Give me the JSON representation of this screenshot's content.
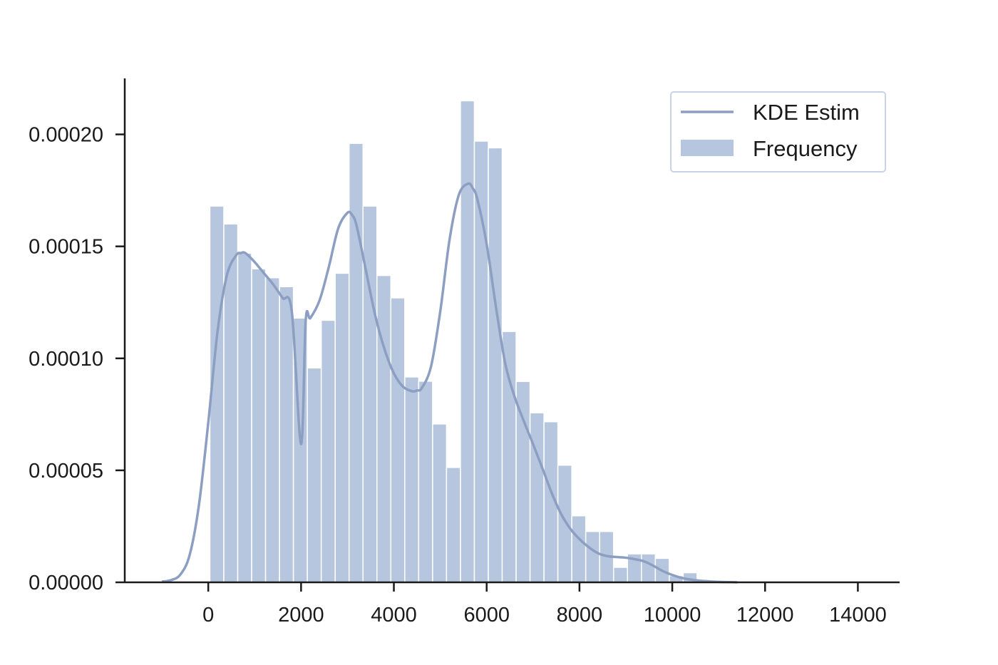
{
  "chart_data": {
    "type": "bar",
    "title": "",
    "xlabel": "",
    "ylabel": "",
    "xlim": [
      -1800,
      14900
    ],
    "ylim": [
      0,
      0.000225
    ],
    "x_ticks": [
      0,
      2000,
      4000,
      6000,
      8000,
      10000,
      12000,
      14000
    ],
    "x_tick_labels": [
      "0",
      "2000",
      "4000",
      "6000",
      "8000",
      "10000",
      "12000",
      "14000"
    ],
    "y_ticks": [
      0,
      5e-05,
      0.0001,
      0.00015,
      0.0002
    ],
    "y_tick_labels": [
      "0.00000",
      "0.00005",
      "0.00010",
      "0.00015",
      "0.00020"
    ],
    "grid": false,
    "legend_position": "top-right",
    "histogram": {
      "name": "Frequency",
      "color": "#b6c6de",
      "edge_color": "#ffffff",
      "bin_width": 300,
      "bin_edges_start": 35,
      "values": [
        0.000168,
        0.00016,
        0.000147,
        0.00014,
        0.000136,
        0.000132,
        0.000118,
        9.57e-05,
        0.000117,
        0.000138,
        0.000196,
        0.000168,
        0.000137,
        0.000127,
        9.17e-05,
        8.98e-05,
        7.07e-05,
        5.13e-05,
        0.000215,
        0.000197,
        0.000194,
        0.000112,
        8.97e-05,
        7.57e-05,
        7.17e-05,
        5.23e-05,
        2.97e-05,
        2.27e-05,
        2.27e-05,
        6.7e-06,
        1.27e-05,
        1.27e-05,
        1.07e-05,
        3e-06,
        4.3e-06
      ]
    },
    "kde": {
      "name": "KDE Estim",
      "color": "#8c9fc2",
      "x": [
        -1000,
        -800,
        -600,
        -400,
        -200,
        0,
        200,
        400,
        600,
        700,
        800,
        1000,
        1200,
        1400,
        1600,
        1800,
        2000,
        2100,
        2200,
        2400,
        2600,
        2800,
        3000,
        3100,
        3200,
        3400,
        3600,
        3800,
        4000,
        4200,
        4400,
        4500,
        4600,
        4800,
        5000,
        5200,
        5400,
        5600,
        5700,
        5800,
        6000,
        6200,
        6400,
        6600,
        6800,
        7000,
        7200,
        7400,
        7600,
        7800,
        8000,
        8200,
        8400,
        8600,
        8800,
        9000,
        9200,
        9400,
        9600,
        9800,
        10000,
        10200,
        10400,
        10600,
        10800,
        11000,
        11200,
        11400
      ],
      "y": [
        3e-07,
        1e-06,
        3.5e-06,
        1.23e-05,
        3.47e-05,
        7.13e-05,
        0.000112,
        0.000137,
        0.000146,
        0.000147,
        0.000147,
        0.000143,
        0.000138,
        0.000133,
        0.000127,
        0.000121,
        6.17e-05,
        0.000117,
        0.000118,
        0.000126,
        0.000141,
        0.000158,
        0.000165,
        0.000164,
        0.000159,
        0.000139,
        0.000119,
        0.000104,
        9.33e-05,
        8.73e-05,
        8.53e-05,
        8.57e-05,
        8.67e-05,
        9.63e-05,
        0.000121,
        0.000153,
        0.000173,
        0.000178,
        0.000176,
        0.000171,
        0.000151,
        0.000123,
        9.77e-05,
        8.3e-05,
        7.2e-05,
        6.17e-05,
        5.1e-05,
        4e-05,
        3.07e-05,
        2.4e-05,
        1.93e-05,
        1.57e-05,
        1.3e-05,
        1.17e-05,
        1.13e-05,
        1.1e-05,
        1.03e-05,
        9.3e-06,
        7.3e-06,
        5e-06,
        3.3e-06,
        2e-06,
        1.2e-06,
        7e-07,
        4e-07,
        2e-07,
        1e-07,
        0
      ]
    }
  }
}
